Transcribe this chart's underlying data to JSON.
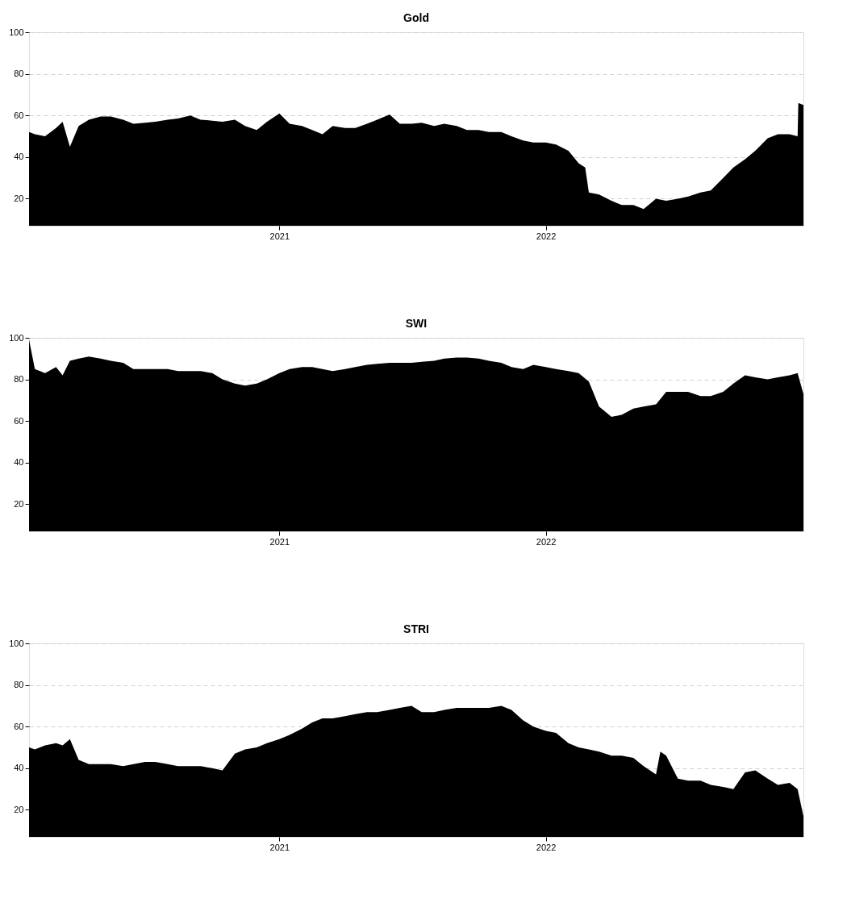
{
  "chart_data": [
    {
      "type": "area",
      "title": "Gold",
      "xlim": [
        "2020-01-24",
        "2022-12-20"
      ],
      "ylim": [
        7,
        100
      ],
      "yticks": [
        20,
        40,
        60,
        80,
        100
      ],
      "xticks": [
        {
          "value": "2021-01-01",
          "label": "2021"
        },
        {
          "value": "2022-01-01",
          "label": "2022"
        }
      ],
      "grid": "y",
      "series": [
        {
          "color": "#000000",
          "x": [
            "2020-01-24",
            "2020-02-01",
            "2020-02-15",
            "2020-03-01",
            "2020-03-10",
            "2020-03-20",
            "2020-04-01",
            "2020-04-15",
            "2020-05-01",
            "2020-05-15",
            "2020-06-01",
            "2020-06-15",
            "2020-07-01",
            "2020-07-15",
            "2020-08-01",
            "2020-08-15",
            "2020-09-01",
            "2020-09-15",
            "2020-10-01",
            "2020-10-15",
            "2020-11-01",
            "2020-11-15",
            "2020-12-01",
            "2020-12-15",
            "2021-01-01",
            "2021-01-15",
            "2021-02-01",
            "2021-02-15",
            "2021-03-01",
            "2021-03-15",
            "2021-04-01",
            "2021-04-15",
            "2021-05-01",
            "2021-05-15",
            "2021-06-01",
            "2021-06-15",
            "2021-07-01",
            "2021-07-15",
            "2021-08-01",
            "2021-08-15",
            "2021-09-01",
            "2021-09-15",
            "2021-10-01",
            "2021-10-15",
            "2021-11-01",
            "2021-11-15",
            "2021-12-01",
            "2021-12-15",
            "2022-01-01",
            "2022-01-15",
            "2022-02-01",
            "2022-02-15",
            "2022-02-24",
            "2022-03-01",
            "2022-03-15",
            "2022-04-01",
            "2022-04-15",
            "2022-05-01",
            "2022-05-15",
            "2022-06-01",
            "2022-06-15",
            "2022-07-01",
            "2022-07-15",
            "2022-08-01",
            "2022-08-15",
            "2022-09-01",
            "2022-09-15",
            "2022-10-01",
            "2022-10-15",
            "2022-11-01",
            "2022-11-15",
            "2022-12-01",
            "2022-12-12",
            "2022-12-13",
            "2022-12-20"
          ],
          "values": [
            52,
            51,
            50,
            54,
            57,
            45,
            55,
            58,
            59.5,
            59.5,
            58,
            56,
            56.5,
            57,
            58,
            58.5,
            60,
            58,
            57.5,
            57,
            58,
            55,
            53,
            57,
            61,
            56,
            55,
            53,
            51,
            55,
            54,
            54,
            56,
            58,
            60.5,
            56,
            56,
            56.5,
            55,
            56,
            55,
            53,
            53,
            52,
            52,
            50,
            48,
            47,
            47,
            46,
            43,
            37,
            35,
            23,
            22,
            19,
            17,
            17,
            15,
            20,
            19,
            20,
            21,
            23,
            24,
            30,
            35,
            39,
            43,
            49,
            51,
            51,
            50,
            66,
            65
          ]
        }
      ]
    },
    {
      "type": "area",
      "title": "SWI",
      "xlim": [
        "2020-01-24",
        "2022-12-20"
      ],
      "ylim": [
        7,
        100
      ],
      "yticks": [
        20,
        40,
        60,
        80,
        100
      ],
      "xticks": [
        {
          "value": "2021-01-01",
          "label": "2021"
        },
        {
          "value": "2022-01-01",
          "label": "2022"
        }
      ],
      "grid": "y",
      "series": [
        {
          "color": "#000000",
          "x": [
            "2020-01-24",
            "2020-02-01",
            "2020-02-15",
            "2020-03-01",
            "2020-03-10",
            "2020-03-20",
            "2020-04-01",
            "2020-04-15",
            "2020-05-01",
            "2020-05-15",
            "2020-06-01",
            "2020-06-15",
            "2020-07-01",
            "2020-07-15",
            "2020-08-01",
            "2020-08-15",
            "2020-09-01",
            "2020-09-15",
            "2020-10-01",
            "2020-10-15",
            "2020-11-01",
            "2020-11-15",
            "2020-12-01",
            "2020-12-15",
            "2021-01-01",
            "2021-01-15",
            "2021-02-01",
            "2021-02-15",
            "2021-03-01",
            "2021-03-15",
            "2021-04-01",
            "2021-04-15",
            "2021-05-01",
            "2021-05-15",
            "2021-06-01",
            "2021-06-15",
            "2021-07-01",
            "2021-07-15",
            "2021-08-01",
            "2021-08-15",
            "2021-09-01",
            "2021-09-15",
            "2021-10-01",
            "2021-10-15",
            "2021-11-01",
            "2021-11-15",
            "2021-12-01",
            "2021-12-15",
            "2022-01-01",
            "2022-01-15",
            "2022-02-01",
            "2022-02-15",
            "2022-03-01",
            "2022-03-15",
            "2022-04-01",
            "2022-04-15",
            "2022-05-01",
            "2022-05-15",
            "2022-06-01",
            "2022-06-15",
            "2022-07-01",
            "2022-07-15",
            "2022-08-01",
            "2022-08-15",
            "2022-09-01",
            "2022-09-15",
            "2022-10-01",
            "2022-10-15",
            "2022-11-01",
            "2022-11-15",
            "2022-12-01",
            "2022-12-12",
            "2022-12-20"
          ],
          "values": [
            99,
            85,
            83,
            86,
            82,
            89,
            90,
            91,
            90,
            89,
            88,
            85,
            85,
            85,
            85,
            84,
            84,
            84,
            83,
            80,
            78,
            77,
            78,
            80,
            83,
            85,
            86,
            86,
            85,
            84,
            85,
            86,
            87,
            87.5,
            88,
            88,
            88,
            88.5,
            89,
            90,
            90.5,
            90.5,
            90,
            89,
            88,
            86,
            85,
            87,
            86,
            85,
            84,
            83,
            79,
            67,
            62,
            63,
            66,
            67,
            68,
            74,
            74,
            74,
            72,
            72,
            74,
            78,
            82,
            81,
            80,
            81,
            82,
            83,
            73
          ]
        }
      ]
    },
    {
      "type": "area",
      "title": "STRI",
      "xlim": [
        "2020-01-24",
        "2022-12-20"
      ],
      "ylim": [
        7,
        100
      ],
      "yticks": [
        20,
        40,
        60,
        80,
        100
      ],
      "xticks": [
        {
          "value": "2021-01-01",
          "label": "2021"
        },
        {
          "value": "2022-01-01",
          "label": "2022"
        }
      ],
      "grid": "y",
      "series": [
        {
          "color": "#000000",
          "x": [
            "2020-01-24",
            "2020-02-01",
            "2020-02-15",
            "2020-03-01",
            "2020-03-10",
            "2020-03-20",
            "2020-04-01",
            "2020-04-15",
            "2020-05-01",
            "2020-05-15",
            "2020-06-01",
            "2020-06-15",
            "2020-07-01",
            "2020-07-15",
            "2020-08-01",
            "2020-08-15",
            "2020-09-01",
            "2020-09-15",
            "2020-10-01",
            "2020-10-15",
            "2020-11-01",
            "2020-11-15",
            "2020-12-01",
            "2020-12-15",
            "2021-01-01",
            "2021-01-15",
            "2021-02-01",
            "2021-02-15",
            "2021-03-01",
            "2021-03-15",
            "2021-04-01",
            "2021-04-15",
            "2021-05-01",
            "2021-05-15",
            "2021-06-01",
            "2021-06-15",
            "2021-07-01",
            "2021-07-15",
            "2021-08-01",
            "2021-08-15",
            "2021-09-01",
            "2021-09-15",
            "2021-10-01",
            "2021-10-15",
            "2021-11-01",
            "2021-11-15",
            "2021-12-01",
            "2021-12-15",
            "2022-01-01",
            "2022-01-15",
            "2022-02-01",
            "2022-02-15",
            "2022-03-01",
            "2022-03-15",
            "2022-04-01",
            "2022-04-15",
            "2022-05-01",
            "2022-05-15",
            "2022-06-01",
            "2022-06-07",
            "2022-06-15",
            "2022-07-01",
            "2022-07-15",
            "2022-08-01",
            "2022-08-15",
            "2022-09-01",
            "2022-09-15",
            "2022-10-01",
            "2022-10-15",
            "2022-11-01",
            "2022-11-15",
            "2022-12-01",
            "2022-12-12",
            "2022-12-20"
          ],
          "values": [
            50,
            49,
            51,
            52,
            51,
            54,
            44,
            42,
            42,
            42,
            41,
            42,
            43,
            43,
            42,
            41,
            41,
            41,
            40,
            39,
            47,
            49,
            50,
            52,
            54,
            56,
            59,
            62,
            64,
            64,
            65,
            66,
            67,
            67,
            68,
            69,
            70,
            67,
            67,
            68,
            69,
            69,
            69,
            69,
            70,
            68,
            63,
            60,
            58,
            57,
            52,
            50,
            49,
            48,
            46,
            46,
            45,
            41,
            37,
            48,
            46,
            35,
            34,
            34,
            32,
            31,
            30,
            38,
            39,
            35,
            32,
            33,
            30,
            17
          ]
        }
      ]
    }
  ]
}
